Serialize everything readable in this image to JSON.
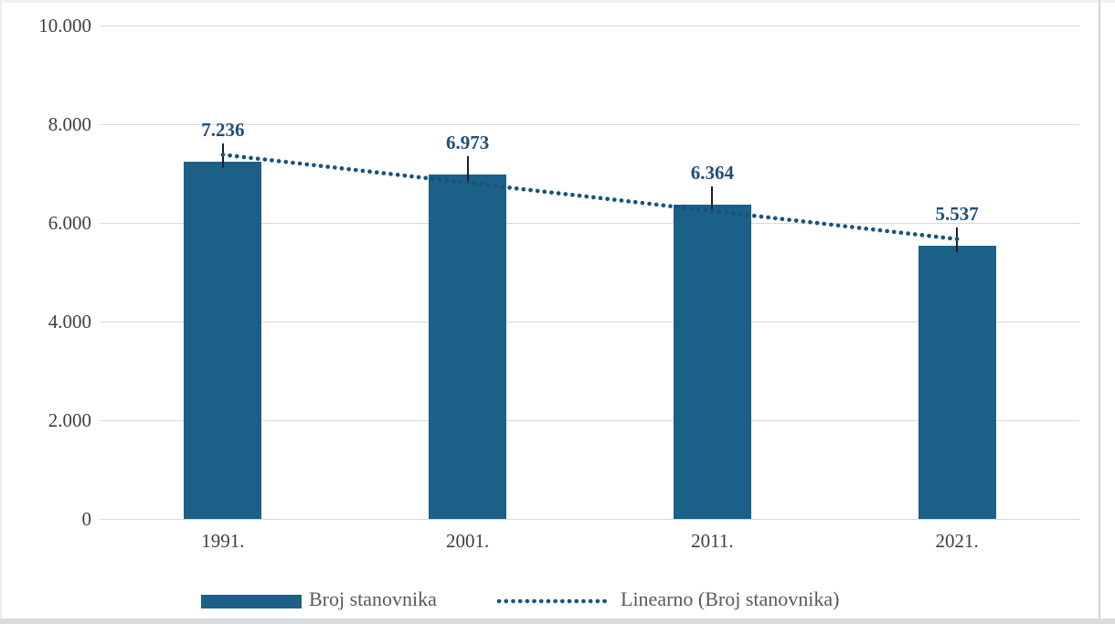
{
  "chart_data": {
    "type": "bar",
    "title": "",
    "categories": [
      "1991.",
      "2001.",
      "2011.",
      "2021."
    ],
    "series": [
      {
        "name": "Broj stanovnika",
        "values": [
          7236,
          6973,
          6364,
          5537
        ],
        "labels": [
          "7.236",
          "6.973",
          "6.364",
          "5.537"
        ]
      }
    ],
    "trendline": {
      "name": "Linearno (Broj stanovnika)",
      "style": "dotted",
      "endpoint_values": [
        7383,
        5672
      ]
    },
    "y_axis": {
      "min": 0,
      "max": 10000,
      "ticks": [
        {
          "value": 0,
          "label": "0"
        },
        {
          "value": 2000,
          "label": "2.000"
        },
        {
          "value": 4000,
          "label": "4.000"
        },
        {
          "value": 6000,
          "label": "6.000"
        },
        {
          "value": 8000,
          "label": "8.000"
        },
        {
          "value": 10000,
          "label": "10.000"
        }
      ]
    },
    "grid": true,
    "legend_position": "bottom",
    "colors": {
      "bar": "#1b6087",
      "trend": "#18537a",
      "data_label": "#1f4e79",
      "axis_label": "#3f3f3f",
      "legend_text": "#595959",
      "gridline": "#d9d9d9",
      "leader_line": "#1f1f1f"
    }
  },
  "legend": {
    "items": [
      {
        "label": "Broj stanovnika",
        "marker": "bar-swatch"
      },
      {
        "label": "Linearno (Broj stanovnika)",
        "marker": "dotted-line"
      }
    ]
  }
}
